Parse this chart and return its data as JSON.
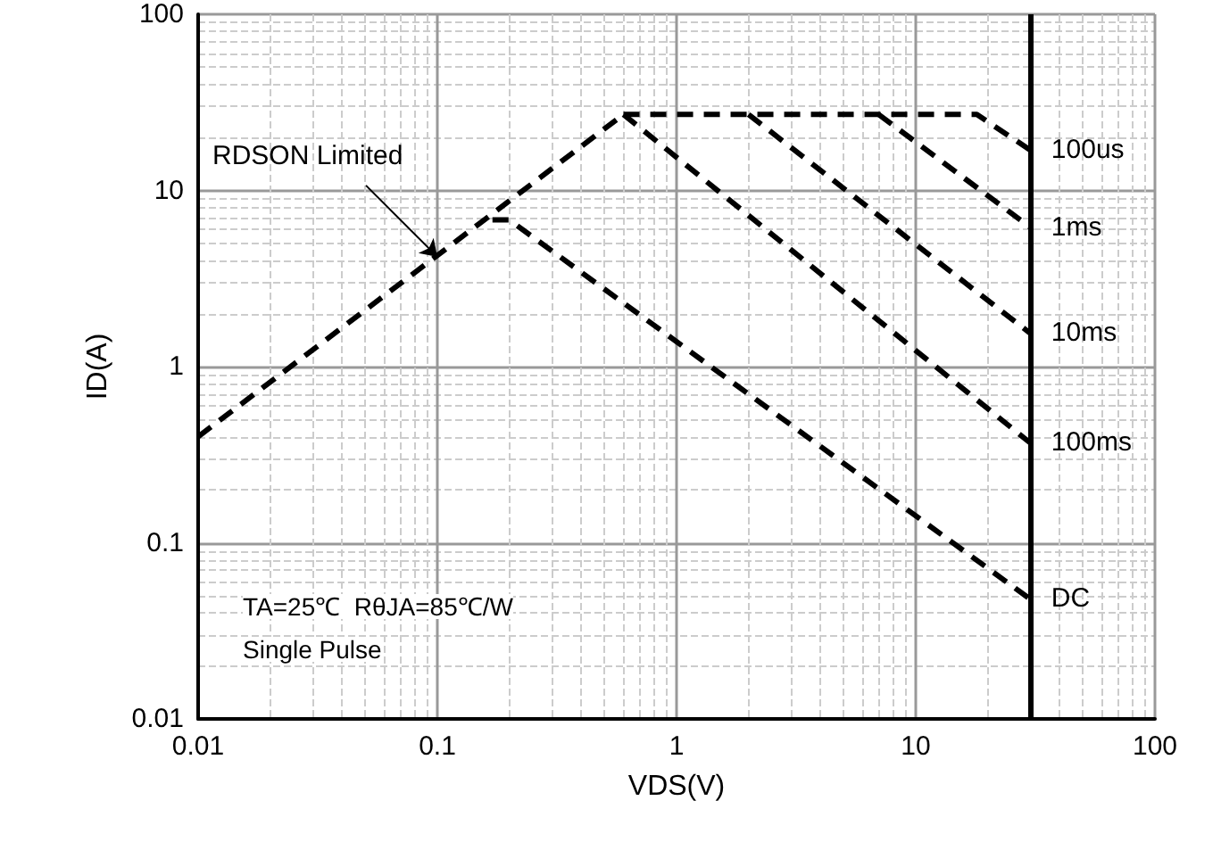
{
  "chart_data": {
    "type": "line",
    "xlabel": "VDS(V)",
    "ylabel": "ID(A)",
    "log": "xy",
    "xlim": [
      0.01,
      100
    ],
    "ylim": [
      0.01,
      100
    ],
    "xticks": [
      0.01,
      0.1,
      1,
      10,
      100
    ],
    "yticks": [
      0.01,
      0.1,
      1,
      10,
      100
    ],
    "grid": true,
    "marker": "none",
    "line_style": "dashed",
    "series": [
      {
        "color": "#000000",
        "x": [
          0.01,
          0.6
        ],
        "values": [
          0.4,
          27
        ]
      },
      {
        "name": "100us",
        "color": "#000000",
        "x": [
          0.6,
          18,
          30
        ],
        "values": [
          27,
          27,
          17
        ]
      },
      {
        "name": "1ms",
        "color": "#000000",
        "x": [
          7,
          30
        ],
        "values": [
          27,
          6.2
        ]
      },
      {
        "name": "10ms",
        "color": "#000000",
        "x": [
          2,
          30
        ],
        "values": [
          27,
          1.55
        ]
      },
      {
        "name": "100ms",
        "color": "#000000",
        "x": [
          0.6,
          30
        ],
        "values": [
          27,
          0.37
        ]
      },
      {
        "name": "DC",
        "color": "#000000",
        "x": [
          0.17,
          0.2,
          30
        ],
        "values": [
          6.8,
          6.8,
          0.048
        ]
      }
    ],
    "ref_lines": [
      {
        "axis": "x",
        "value": 30,
        "color": "#000000",
        "line_style": "solid"
      }
    ],
    "annotations": [
      {
        "text": "RDSON Limited",
        "x": 0.1,
        "y": 4.2
      },
      "TA=25℃  RθJA=85℃/W",
      "Single Pulse"
    ]
  }
}
